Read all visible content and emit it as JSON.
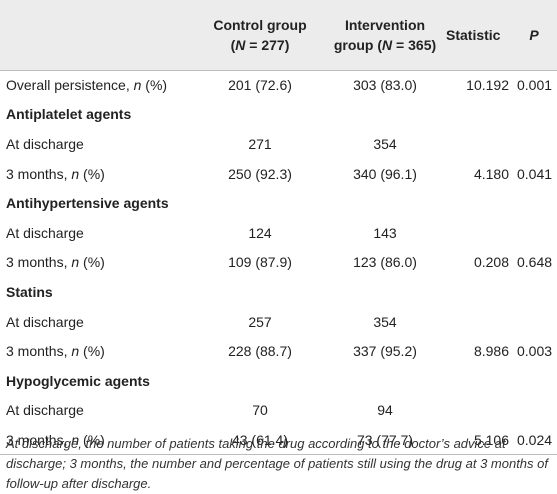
{
  "header": {
    "control_line1": "Control group",
    "control_line2_pre": "(",
    "control_line2_n": "N",
    "control_line2_post": " = 277)",
    "intervention_line1": "Intervention",
    "intervention_line2_pre": "group (",
    "intervention_line2_n": "N",
    "intervention_line2_post": " = 365)",
    "statistic": "Statistic",
    "p": "P"
  },
  "overall": {
    "label_pre": "Overall persistence, ",
    "label_n": "n",
    "label_post": " (%)",
    "control": "201 (72.6)",
    "intervention": "303 (83.0)",
    "statistic": "10.192",
    "p": "0.001"
  },
  "sections": [
    {
      "title": "Antiplatelet agents",
      "discharge_label": "At discharge",
      "discharge_control": "271",
      "discharge_intervention": "354",
      "m3_label_pre": "3 months, ",
      "m3_label_n": "n",
      "m3_label_post": " (%)",
      "m3_control": "250 (92.3)",
      "m3_intervention": "340 (96.1)",
      "statistic": "4.180",
      "p": "0.041"
    },
    {
      "title": "Antihypertensive agents",
      "discharge_label": "At discharge",
      "discharge_control": "124",
      "discharge_intervention": "143",
      "m3_label_pre": "3 months, ",
      "m3_label_n": "n",
      "m3_label_post": " (%)",
      "m3_control": "109 (87.9)",
      "m3_intervention": "123 (86.0)",
      "statistic": "0.208",
      "p": "0.648"
    },
    {
      "title": "Statins",
      "discharge_label": "At discharge",
      "discharge_control": "257",
      "discharge_intervention": "354",
      "m3_label_pre": "3 months, ",
      "m3_label_n": "n",
      "m3_label_post": " (%)",
      "m3_control": "228 (88.7)",
      "m3_intervention": "337 (95.2)",
      "statistic": "8.986",
      "p": "0.003"
    },
    {
      "title": "Hypoglycemic agents",
      "discharge_label": "At discharge",
      "discharge_control": "70",
      "discharge_intervention": "94",
      "m3_label_pre": "3 months, ",
      "m3_label_n": "n",
      "m3_label_post": " (%)",
      "m3_control": "43 (61.4)",
      "m3_intervention": "73 (77.7)",
      "statistic": "5.106",
      "p": "0.024"
    }
  ],
  "footnote": "At discharge, the number of patients taking the drug according to the doctor’s advice at discharge; 3 months, the number and percentage of patients still using the drug at 3 months of follow-up after discharge."
}
